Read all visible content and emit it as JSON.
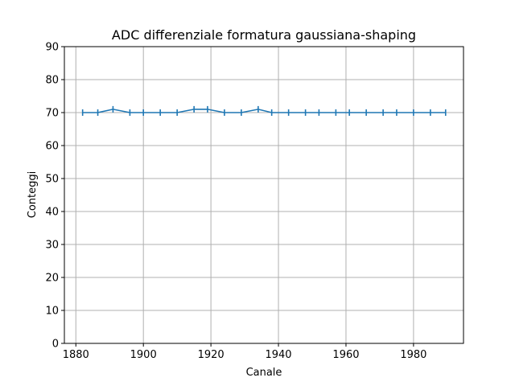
{
  "chart_data": {
    "type": "line",
    "title": "ADC differenziale formatura gaussiana-shaping",
    "xlabel": "Canale",
    "ylabel": "Conteggi",
    "xlim": [
      1876.6,
      1994.8
    ],
    "ylim": [
      0,
      90
    ],
    "xticks": [
      1880,
      1900,
      1920,
      1940,
      1960,
      1980
    ],
    "yticks": [
      0,
      10,
      20,
      30,
      40,
      50,
      60,
      70,
      80,
      90
    ],
    "grid": true,
    "error_bars": true,
    "series": [
      {
        "color": "#1f77b4",
        "x": [
          1882,
          1886.5,
          1891,
          1896,
          1900,
          1905,
          1910,
          1915,
          1919,
          1924,
          1929,
          1934,
          1938,
          1943,
          1948,
          1952,
          1957,
          1961,
          1966,
          1971,
          1975,
          1980,
          1985,
          1989.5
        ],
        "y": [
          70,
          70,
          71,
          70,
          70,
          70,
          70,
          71,
          71,
          70,
          70,
          71,
          70,
          70,
          70,
          70,
          70,
          70,
          70,
          70,
          70,
          70,
          70,
          70
        ]
      }
    ]
  }
}
